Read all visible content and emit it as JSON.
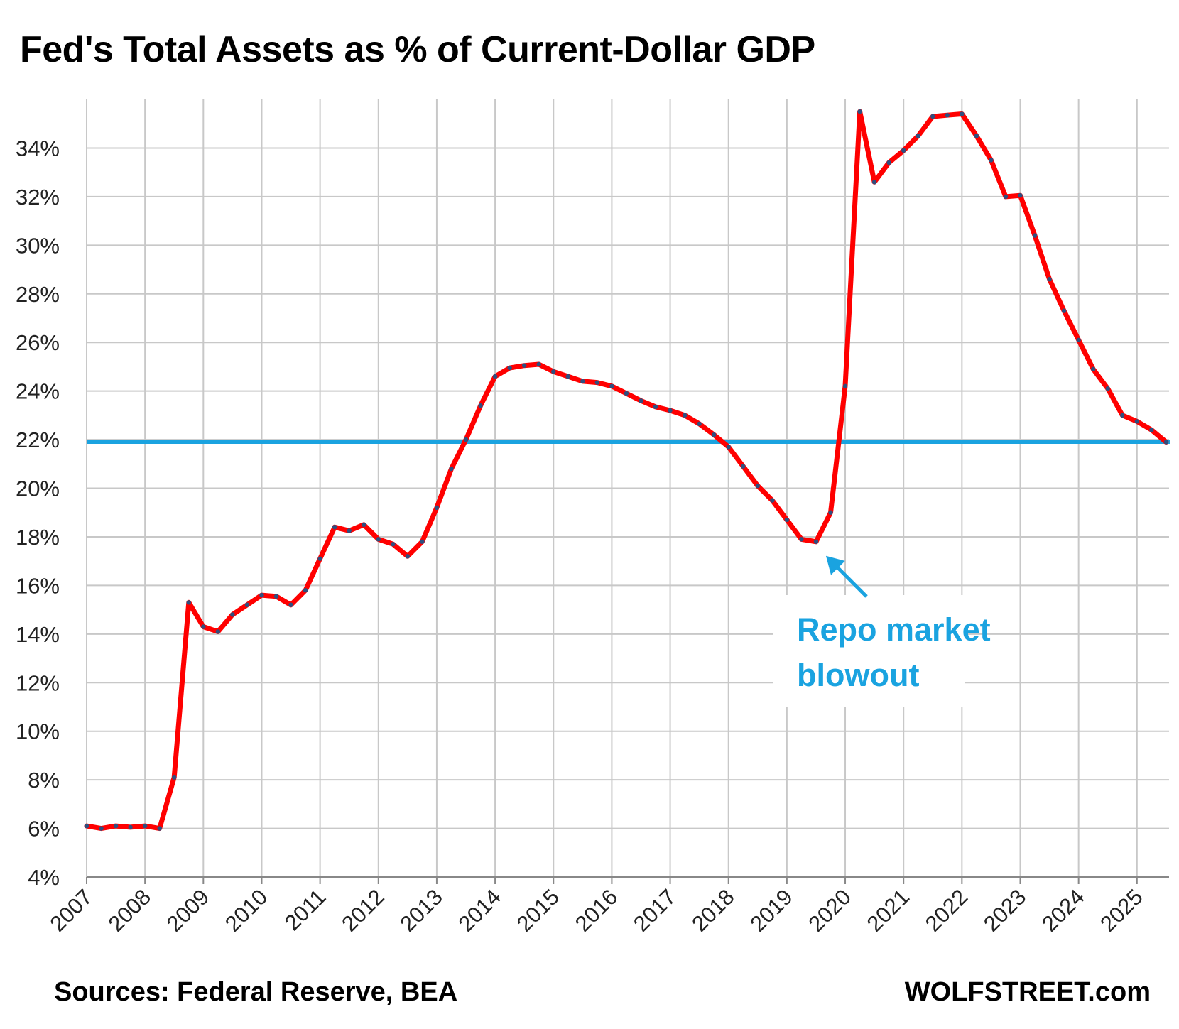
{
  "colors": {
    "line": "#ff0000",
    "marker": "#2f4f7f",
    "reference": "#1aa3e0",
    "grid": "#c8c8c8",
    "annotation": "#1aa3e0"
  },
  "chart_data": {
    "type": "line",
    "title": "Fed's Total Assets as % of Current-Dollar GDP",
    "xlabel": "",
    "ylabel": "",
    "ylim": [
      4,
      36
    ],
    "yticks": [
      4,
      6,
      8,
      10,
      12,
      14,
      16,
      18,
      20,
      22,
      24,
      26,
      28,
      30,
      32,
      34
    ],
    "ytick_labels": [
      "4%",
      "6%",
      "8%",
      "10%",
      "12%",
      "14%",
      "16%",
      "18%",
      "20%",
      "22%",
      "24%",
      "26%",
      "28%",
      "30%",
      "32%",
      "34%"
    ],
    "xlim": [
      2007.0,
      2025.55
    ],
    "xticks": [
      2007,
      2008,
      2009,
      2010,
      2011,
      2012,
      2013,
      2014,
      2015,
      2016,
      2017,
      2018,
      2019,
      2020,
      2021,
      2022,
      2023,
      2024,
      2025
    ],
    "xtick_labels": [
      "2007",
      "2008",
      "2009",
      "2010",
      "2011",
      "2012",
      "2013",
      "2014",
      "2015",
      "2016",
      "2017",
      "2018",
      "2019",
      "2020",
      "2021",
      "2022",
      "2023",
      "2024",
      "2025"
    ],
    "grid": true,
    "reference_line": 21.9,
    "series": [
      {
        "x": [
          2007.0,
          2007.25,
          2007.5,
          2007.75,
          2008.0,
          2008.25,
          2008.5,
          2008.75,
          2009.0,
          2009.25,
          2009.5,
          2009.75,
          2010.0,
          2010.25,
          2010.5,
          2010.75,
          2011.0,
          2011.25,
          2011.5,
          2011.75,
          2012.0,
          2012.25,
          2012.5,
          2012.75,
          2013.0,
          2013.25,
          2013.5,
          2013.75,
          2014.0,
          2014.25,
          2014.5,
          2014.75,
          2015.0,
          2015.25,
          2015.5,
          2015.75,
          2016.0,
          2016.25,
          2016.5,
          2016.75,
          2017.0,
          2017.25,
          2017.5,
          2017.75,
          2018.0,
          2018.25,
          2018.5,
          2018.75,
          2019.0,
          2019.25,
          2019.5,
          2019.75,
          2020.0,
          2020.25,
          2020.5,
          2020.75,
          2021.0,
          2021.25,
          2021.5,
          2021.75,
          2022.0,
          2022.25,
          2022.5,
          2022.75,
          2023.0,
          2023.25,
          2023.5,
          2023.75,
          2024.0,
          2024.25,
          2024.5,
          2024.75,
          2025.0,
          2025.25,
          2025.5
        ],
        "values": [
          6.1,
          6.0,
          6.1,
          6.05,
          6.1,
          6.0,
          8.1,
          15.3,
          14.3,
          14.1,
          14.8,
          15.2,
          15.6,
          15.55,
          15.2,
          15.8,
          17.1,
          18.4,
          18.25,
          18.5,
          17.9,
          17.7,
          17.2,
          17.8,
          19.2,
          20.8,
          22.0,
          23.4,
          24.6,
          24.95,
          25.05,
          25.1,
          24.8,
          24.6,
          24.4,
          24.35,
          24.2,
          23.9,
          23.6,
          23.35,
          23.2,
          23.0,
          22.65,
          22.2,
          21.7,
          20.9,
          20.1,
          19.5,
          18.7,
          17.9,
          17.8,
          19.0,
          24.2,
          35.5,
          32.6,
          33.4,
          33.9,
          34.5,
          35.3,
          35.35,
          35.4,
          34.5,
          33.5,
          32.0,
          32.05,
          30.4,
          28.6,
          27.3,
          26.1,
          24.9,
          24.1,
          23.0,
          22.75,
          22.4,
          21.9
        ]
      }
    ],
    "annotations": [
      {
        "text_lines": [
          "Repo market",
          "blowout"
        ],
        "points_to": [
          2019.5,
          17.8
        ]
      }
    ]
  },
  "footer": {
    "sources": "Sources: Federal Reserve, BEA",
    "brand": "WOLFSTREET.com"
  }
}
